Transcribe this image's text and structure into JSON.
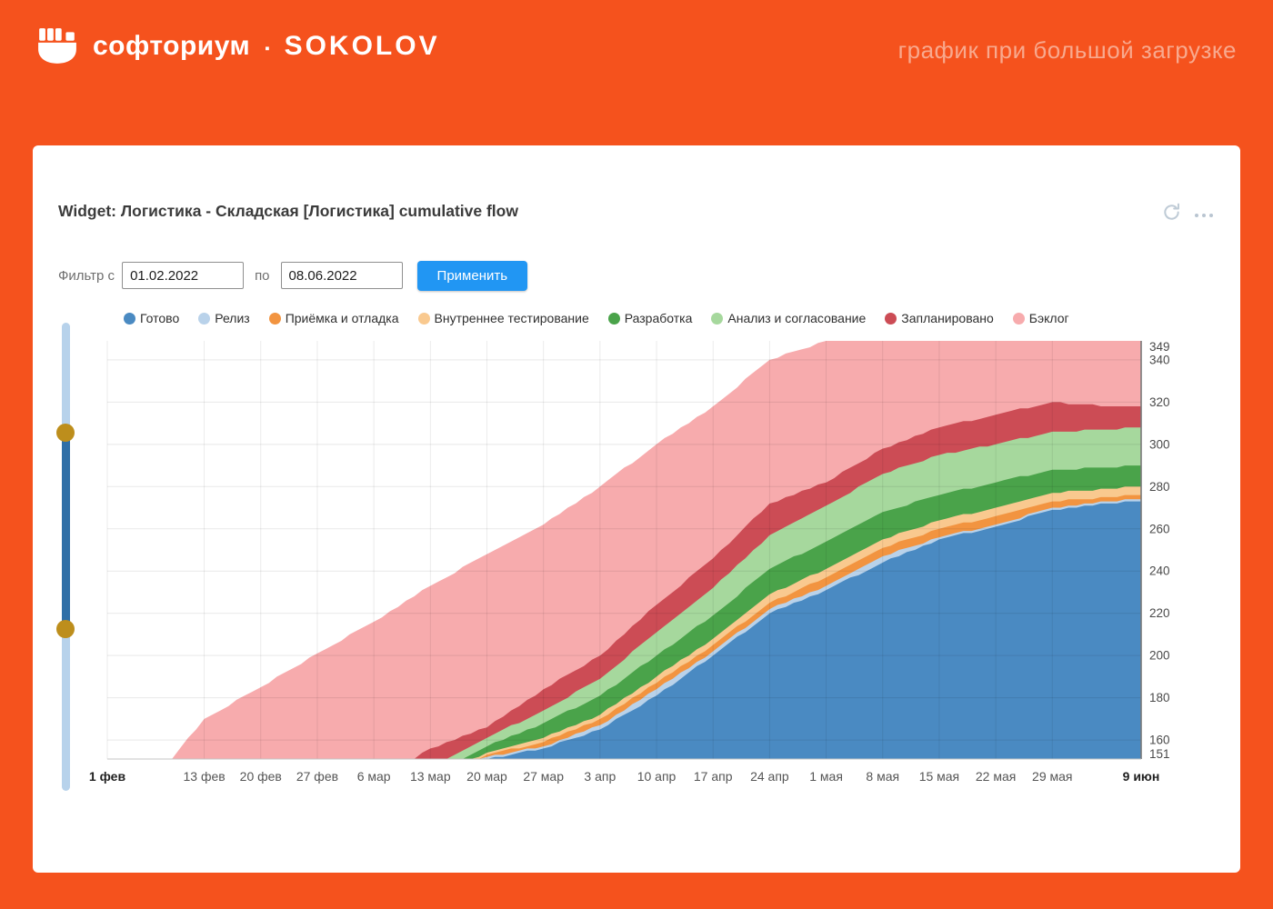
{
  "header": {
    "brand": "софториум",
    "brand_separator": "▪",
    "brand2": "SOKOLOV",
    "tagline": "график при большой загрузке"
  },
  "widget": {
    "title": "Widget: Логистика - Складская [Логистика] cumulative flow",
    "filter": {
      "label_from": "Фильтр с",
      "from_value": "01.02.2022",
      "label_to": "по",
      "to_value": "08.06.2022",
      "apply_label": "Применить"
    },
    "actions": {
      "refresh_icon": "refresh-icon",
      "more_icon": "more-menu-icon"
    }
  },
  "colors": {
    "page_background": "#F5521D",
    "tagline_text": "#F8A98E",
    "apply_button": "#2196F3",
    "slider_track": "#B7D2EB",
    "slider_range": "#2F6FA7",
    "slider_handle": "#BD8E1C"
  },
  "chart_data": {
    "type": "area",
    "stacked": true,
    "grid": true,
    "legend_position": "top",
    "title": "Логистика - Складская [Логистика] cumulative flow",
    "xlabel": "",
    "ylabel": "",
    "ylim": [
      151,
      349
    ],
    "yticks": [
      349,
      340,
      320,
      300,
      280,
      260,
      240,
      220,
      200,
      180,
      160,
      151
    ],
    "points_days": [
      0,
      8,
      12,
      19,
      26,
      33,
      40,
      47,
      54,
      61,
      68,
      75,
      82,
      89,
      96,
      103,
      110,
      117,
      124,
      128
    ],
    "points_dates": [
      "01.02",
      "09.02",
      "13.02",
      "20.02",
      "27.02",
      "06.03",
      "13.03",
      "20.03",
      "27.03",
      "03.04",
      "10.04",
      "17.04",
      "24.04",
      "01.05",
      "08.05",
      "15.05",
      "22.05",
      "29.05",
      "05.06",
      "09.06"
    ],
    "series": [
      {
        "name": "Готово",
        "color": "#4A8AC2",
        "values": [
          60,
          70,
          85,
          97,
          110,
          122,
          135,
          151,
          156,
          165,
          181,
          200,
          220,
          231,
          244,
          255,
          261,
          269,
          272,
          273
        ]
      },
      {
        "name": "Релиз",
        "color": "#B9D2EA",
        "values": [
          0,
          0,
          0,
          0,
          0,
          0,
          1,
          1,
          1,
          2,
          3,
          2,
          2,
          2,
          3,
          1,
          1,
          1,
          1,
          1
        ]
      },
      {
        "name": "Приёмка и отладка",
        "color": "#F29440",
        "values": [
          0,
          0,
          0,
          0,
          1,
          1,
          1,
          1,
          2,
          3,
          3,
          3,
          3,
          4,
          4,
          4,
          4,
          3,
          2,
          2
        ]
      },
      {
        "name": "Внутреннее тестирование",
        "color": "#F9C98F",
        "values": [
          0,
          0,
          0,
          0,
          0,
          1,
          1,
          1,
          2,
          2,
          3,
          3,
          4,
          4,
          4,
          4,
          4,
          4,
          4,
          4
        ]
      },
      {
        "name": "Разработка",
        "color": "#4AA34A",
        "values": [
          1,
          1,
          2,
          2,
          3,
          3,
          4,
          3,
          7,
          9,
          10,
          11,
          12,
          13,
          13,
          12,
          12,
          11,
          10,
          10
        ]
      },
      {
        "name": "Анализ и согласование",
        "color": "#A6D89D",
        "values": [
          2,
          2,
          3,
          3,
          4,
          4,
          5,
          4,
          6,
          8,
          11,
          13,
          16,
          17,
          18,
          19,
          18,
          18,
          18,
          18
        ]
      },
      {
        "name": "Запланировано",
        "color": "#CC4C55",
        "values": [
          3,
          4,
          5,
          6,
          7,
          8,
          9,
          5,
          10,
          11,
          13,
          14,
          15,
          11,
          12,
          13,
          14,
          14,
          11,
          10
        ]
      },
      {
        "name": "Бэклог",
        "color": "#F7ABAD",
        "values": [
          85,
          74,
          75,
          77,
          76,
          77,
          77,
          82,
          78,
          80,
          76,
          72,
          68,
          67,
          51,
          41,
          35,
          29,
          31,
          31
        ]
      }
    ],
    "xticks": [
      {
        "label": "1 фев",
        "day": 0,
        "bold": true
      },
      {
        "label": "13 фев",
        "day": 12
      },
      {
        "label": "20 фев",
        "day": 19
      },
      {
        "label": "27 фев",
        "day": 26
      },
      {
        "label": "6 мар",
        "day": 33
      },
      {
        "label": "13 мар",
        "day": 40
      },
      {
        "label": "20 мар",
        "day": 47
      },
      {
        "label": "27 мар",
        "day": 54
      },
      {
        "label": "3 апр",
        "day": 61
      },
      {
        "label": "10 апр",
        "day": 68
      },
      {
        "label": "17 апр",
        "day": 75
      },
      {
        "label": "24 апр",
        "day": 82
      },
      {
        "label": "1 мая",
        "day": 89
      },
      {
        "label": "8 мая",
        "day": 96
      },
      {
        "label": "15 мая",
        "day": 103
      },
      {
        "label": "22 мая",
        "day": 110
      },
      {
        "label": "29 мая",
        "day": 117
      },
      {
        "label": "9 июн",
        "day": 128,
        "bold": true
      }
    ]
  }
}
